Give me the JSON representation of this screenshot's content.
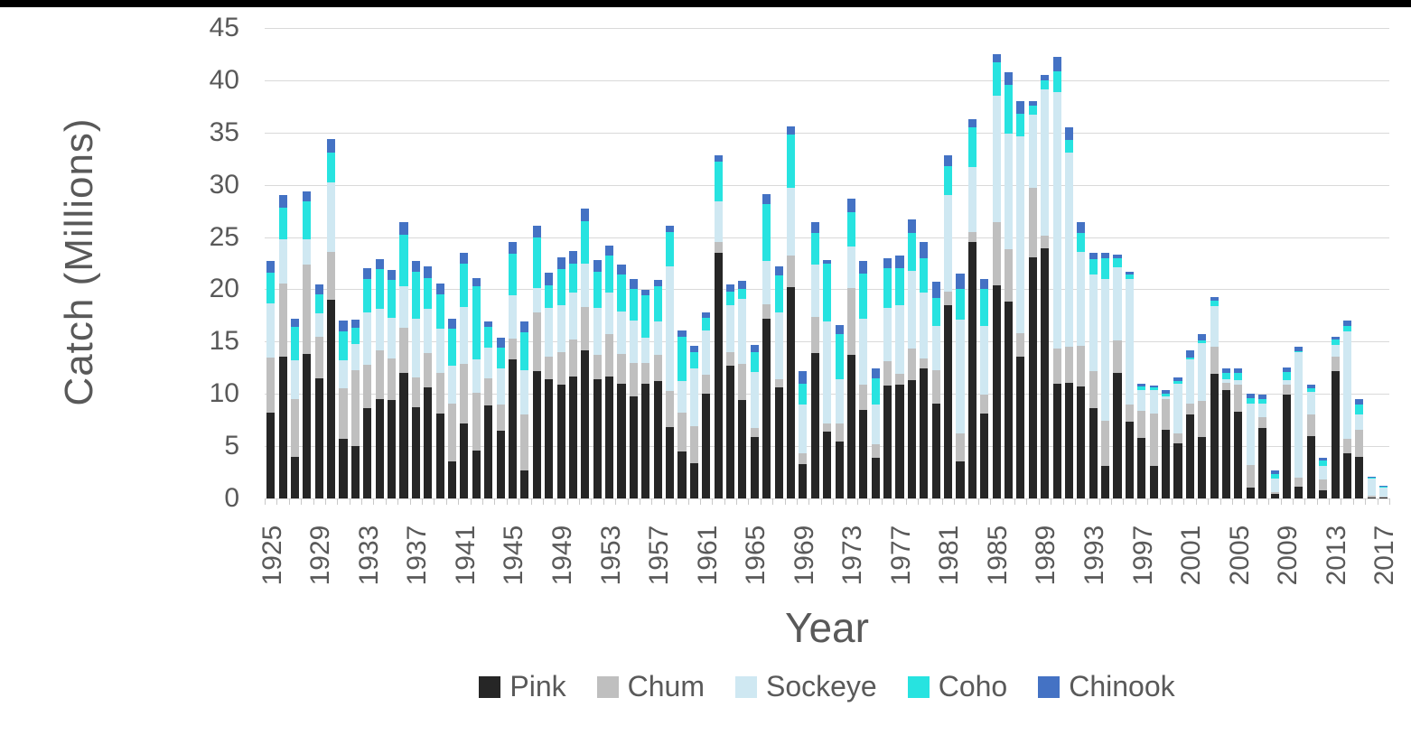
{
  "page": {
    "top_strip_color": "#000000",
    "background": "#ffffff"
  },
  "colors": {
    "text": "#595959",
    "gridline": "#d9d9d9",
    "tick": "#c9c9c9"
  },
  "chart_data": {
    "type": "bar",
    "stacked": true,
    "title": "",
    "xlabel": "Year",
    "ylabel": "Catch (Millions)",
    "ylim": [
      0,
      45
    ],
    "y_ticks": [
      0,
      5,
      10,
      15,
      20,
      25,
      30,
      35,
      40,
      45
    ],
    "grid": "horizontal",
    "legend_position": "bottom",
    "x_label_interval": 4,
    "years": [
      1925,
      1926,
      1927,
      1928,
      1929,
      1930,
      1931,
      1932,
      1933,
      1934,
      1935,
      1936,
      1937,
      1938,
      1939,
      1940,
      1941,
      1942,
      1943,
      1944,
      1945,
      1946,
      1947,
      1948,
      1949,
      1950,
      1951,
      1952,
      1953,
      1954,
      1955,
      1956,
      1957,
      1958,
      1959,
      1960,
      1961,
      1962,
      1963,
      1964,
      1965,
      1966,
      1967,
      1968,
      1969,
      1970,
      1971,
      1972,
      1973,
      1974,
      1975,
      1976,
      1977,
      1978,
      1979,
      1980,
      1981,
      1982,
      1983,
      1984,
      1985,
      1986,
      1987,
      1988,
      1989,
      1990,
      1991,
      1992,
      1993,
      1994,
      1995,
      1996,
      1997,
      1998,
      1999,
      2000,
      2001,
      2002,
      2003,
      2004,
      2005,
      2006,
      2007,
      2008,
      2009,
      2010,
      2011,
      2012,
      2013,
      2014,
      2015,
      2016,
      2017
    ],
    "series": [
      {
        "name": "Pink",
        "color": "#262626",
        "values": [
          8.2,
          13.6,
          4.0,
          13.8,
          11.5,
          19.0,
          5.7,
          5.0,
          8.6,
          9.5,
          9.4,
          12.0,
          8.7,
          10.6,
          8.1,
          3.5,
          7.2,
          4.6,
          8.9,
          6.5,
          13.3,
          2.7,
          12.2,
          11.4,
          10.9,
          11.7,
          14.2,
          11.4,
          11.7,
          11.0,
          9.8,
          11.0,
          11.2,
          6.8,
          4.5,
          3.4,
          10.0,
          23.5,
          12.7,
          9.4,
          5.9,
          17.2,
          10.6,
          20.2,
          3.3,
          13.9,
          6.4,
          5.4,
          13.7,
          8.5,
          3.9,
          10.8,
          10.9,
          11.3,
          12.4,
          9.1,
          18.5,
          3.5,
          24.5,
          8.1,
          20.4,
          18.8,
          13.6,
          23.1,
          23.9,
          11.0,
          11.1,
          10.7,
          8.6,
          3.1,
          12.0,
          7.3,
          5.8,
          3.1,
          6.6,
          5.3,
          8.0,
          5.9,
          11.9,
          10.4,
          8.3,
          1.0,
          6.7,
          0.4,
          9.9,
          1.1,
          6.0,
          0.8,
          12.2,
          4.3,
          4.0,
          0.1,
          0.1
        ]
      },
      {
        "name": "Chum",
        "color": "#bfbfbf",
        "values": [
          5.3,
          7.0,
          5.5,
          8.6,
          4.0,
          4.6,
          4.8,
          7.3,
          4.2,
          4.7,
          4.0,
          4.3,
          2.9,
          3.3,
          3.9,
          5.6,
          5.7,
          5.5,
          2.6,
          2.5,
          2.0,
          5.3,
          5.6,
          2.2,
          3.1,
          3.5,
          4.1,
          2.3,
          4.0,
          2.8,
          3.2,
          2.0,
          2.5,
          3.5,
          3.7,
          3.5,
          1.8,
          1.0,
          1.3,
          3.5,
          0.8,
          1.4,
          0.8,
          3.0,
          1.0,
          3.5,
          0.8,
          1.8,
          6.4,
          2.4,
          1.3,
          2.3,
          1.0,
          3.0,
          1.0,
          3.2,
          1.3,
          2.7,
          1.0,
          1.8,
          6.0,
          5.0,
          2.2,
          6.6,
          1.2,
          3.3,
          3.4,
          3.9,
          3.6,
          4.3,
          3.1,
          1.7,
          2.6,
          5.0,
          2.9,
          0.9,
          1.1,
          3.4,
          2.6,
          0.7,
          2.6,
          2.2,
          1.1,
          0.2,
          1.0,
          0.9,
          2.0,
          1.0,
          1.4,
          1.4,
          2.6,
          0.2,
          0.1
        ]
      },
      {
        "name": "Sockeye",
        "color": "#cfe8f2",
        "values": [
          5.2,
          4.2,
          3.7,
          2.4,
          2.2,
          6.6,
          2.7,
          2.5,
          5.0,
          3.9,
          3.9,
          4.0,
          5.6,
          4.2,
          4.2,
          3.6,
          5.4,
          3.2,
          2.9,
          3.4,
          4.1,
          4.3,
          2.3,
          4.6,
          4.5,
          4.5,
          4.2,
          4.5,
          4.0,
          4.1,
          4.0,
          2.4,
          3.2,
          11.9,
          3.0,
          5.5,
          4.3,
          3.9,
          4.5,
          6.2,
          5.4,
          4.1,
          6.4,
          6.5,
          4.7,
          5.0,
          9.7,
          4.2,
          4.0,
          6.3,
          3.8,
          5.1,
          6.6,
          7.5,
          6.3,
          4.2,
          9.2,
          10.9,
          6.2,
          6.6,
          12.1,
          11.1,
          18.8,
          7.0,
          14.0,
          24.6,
          18.6,
          9.0,
          9.2,
          13.6,
          7.0,
          12.0,
          2.0,
          2.3,
          0.3,
          4.8,
          4.2,
          5.6,
          3.9,
          0.3,
          0.4,
          5.9,
          1.3,
          1.3,
          0.4,
          12.0,
          2.2,
          1.3,
          1.1,
          10.3,
          1.4,
          1.6,
          0.8
        ]
      },
      {
        "name": "Coho",
        "color": "#27e3e0",
        "values": [
          2.9,
          3.0,
          3.2,
          3.6,
          1.8,
          2.9,
          2.8,
          1.5,
          3.2,
          3.8,
          3.6,
          4.9,
          4.5,
          3.0,
          3.3,
          3.5,
          4.2,
          7.0,
          2.0,
          2.0,
          4.0,
          3.6,
          4.9,
          2.2,
          3.4,
          2.8,
          4.0,
          3.5,
          3.5,
          3.5,
          3.0,
          4.0,
          3.4,
          3.3,
          4.3,
          1.6,
          1.2,
          3.8,
          1.3,
          0.9,
          1.9,
          5.5,
          3.5,
          5.1,
          2.0,
          3.0,
          5.6,
          4.3,
          3.3,
          4.3,
          2.5,
          3.8,
          3.5,
          3.6,
          3.3,
          2.7,
          2.8,
          2.9,
          3.8,
          3.5,
          3.2,
          4.7,
          2.2,
          0.9,
          0.9,
          2.0,
          1.2,
          1.8,
          1.5,
          2.0,
          0.9,
          0.4,
          0.3,
          0.2,
          0.2,
          0.2,
          0.2,
          0.2,
          0.5,
          0.6,
          0.7,
          0.5,
          0.4,
          0.4,
          0.8,
          0.1,
          0.3,
          0.5,
          0.5,
          0.5,
          1.0,
          0.1,
          0.1
        ]
      },
      {
        "name": "Chinook",
        "color": "#4472c4",
        "values": [
          1.1,
          1.2,
          0.8,
          1.0,
          1.0,
          1.3,
          1.0,
          0.8,
          1.0,
          1.0,
          1.0,
          1.2,
          1.0,
          1.1,
          1.1,
          1.0,
          1.0,
          0.8,
          0.5,
          1.0,
          1.1,
          1.0,
          1.1,
          1.2,
          1.2,
          1.2,
          1.2,
          1.1,
          1.0,
          1.0,
          1.0,
          0.6,
          0.6,
          0.6,
          0.6,
          0.6,
          0.5,
          0.6,
          0.7,
          0.8,
          0.7,
          0.9,
          0.9,
          0.8,
          1.2,
          1.0,
          0.3,
          0.9,
          1.3,
          1.2,
          0.9,
          1.0,
          1.2,
          1.3,
          1.5,
          1.5,
          1.0,
          1.5,
          0.8,
          1.0,
          0.8,
          1.2,
          1.2,
          0.4,
          0.5,
          1.3,
          1.2,
          1.0,
          0.6,
          0.5,
          0.3,
          0.3,
          0.3,
          0.2,
          0.4,
          0.4,
          0.7,
          0.6,
          0.4,
          0.4,
          0.4,
          0.4,
          0.4,
          0.4,
          0.4,
          0.4,
          0.4,
          0.3,
          0.3,
          0.5,
          0.5,
          0.1,
          0.1
        ]
      }
    ]
  }
}
